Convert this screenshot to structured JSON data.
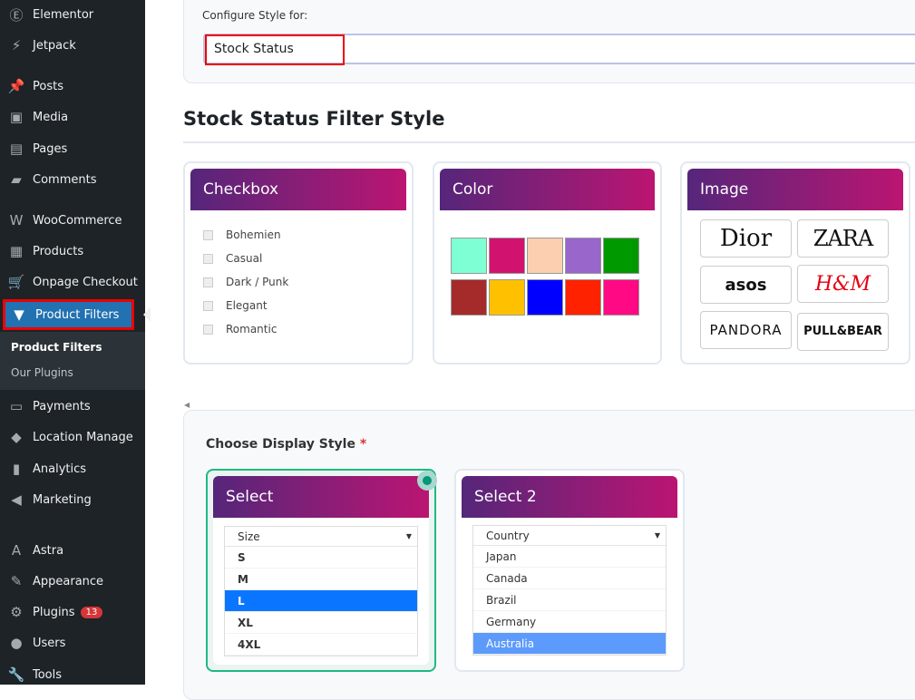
{
  "sidebar": {
    "items": [
      {
        "label": "Elementor",
        "icon": "elementor-icon"
      },
      {
        "label": "Jetpack",
        "icon": "jetpack-icon"
      },
      {
        "label": "Posts",
        "icon": "pin-icon"
      },
      {
        "label": "Media",
        "icon": "media-icon"
      },
      {
        "label": "Pages",
        "icon": "pages-icon"
      },
      {
        "label": "Comments",
        "icon": "comment-icon"
      },
      {
        "label": "WooCommerce",
        "icon": "woo-icon"
      },
      {
        "label": "Products",
        "icon": "archive-icon"
      },
      {
        "label": "Onpage Checkout",
        "icon": "cart-icon"
      },
      {
        "label": "Product Filters",
        "icon": "filter-icon"
      },
      {
        "label": "Payments",
        "icon": "payments-icon"
      },
      {
        "label": "Location Manage",
        "icon": "location-icon"
      },
      {
        "label": "Analytics",
        "icon": "chart-icon"
      },
      {
        "label": "Marketing",
        "icon": "megaphone-icon"
      },
      {
        "label": "Astra",
        "icon": "astra-icon"
      },
      {
        "label": "Appearance",
        "icon": "brush-icon"
      },
      {
        "label": "Plugins",
        "icon": "plugin-icon",
        "badge": "13"
      },
      {
        "label": "Users",
        "icon": "user-icon"
      },
      {
        "label": "Tools",
        "icon": "wrench-icon"
      }
    ],
    "submenu": [
      "Product Filters",
      "Our Plugins"
    ]
  },
  "config": {
    "label": "Configure Style for:",
    "value": "Stock Status"
  },
  "heading": "Stock Status Filter Style",
  "cards": {
    "checkbox": {
      "title": "Checkbox",
      "items": [
        "Bohemien",
        "Casual",
        "Dark / Punk",
        "Elegant",
        "Romantic"
      ]
    },
    "color": {
      "title": "Color",
      "swatches": [
        "#7fffd4",
        "#d2126f",
        "#fbcfb0",
        "#9966cc",
        "#009900",
        "#a52a2a",
        "#ffc000",
        "#0000ff",
        "#ff2200",
        "#ff0a84"
      ]
    },
    "image": {
      "title": "Image",
      "brands": [
        "Dior",
        "ZARA",
        "asos",
        "H&M",
        "PANDORA",
        "PULL&BEAR"
      ]
    }
  },
  "display": {
    "label": "Choose Display Style",
    "required": "*",
    "select": {
      "title": "Select",
      "placeholder": "Size",
      "options": [
        "S",
        "M",
        "L",
        "XL",
        "4XL"
      ],
      "selected": "L"
    },
    "select2": {
      "title": "Select 2",
      "placeholder": "Country",
      "options": [
        "Japan",
        "Canada",
        "Brazil",
        "Germany",
        "Australia"
      ],
      "selected": "Australia"
    }
  },
  "colors": {
    "accent": "#2271b1",
    "gradient_start": "#55267a",
    "gradient_end": "#bb1572",
    "selected_border": "#1fb981"
  }
}
